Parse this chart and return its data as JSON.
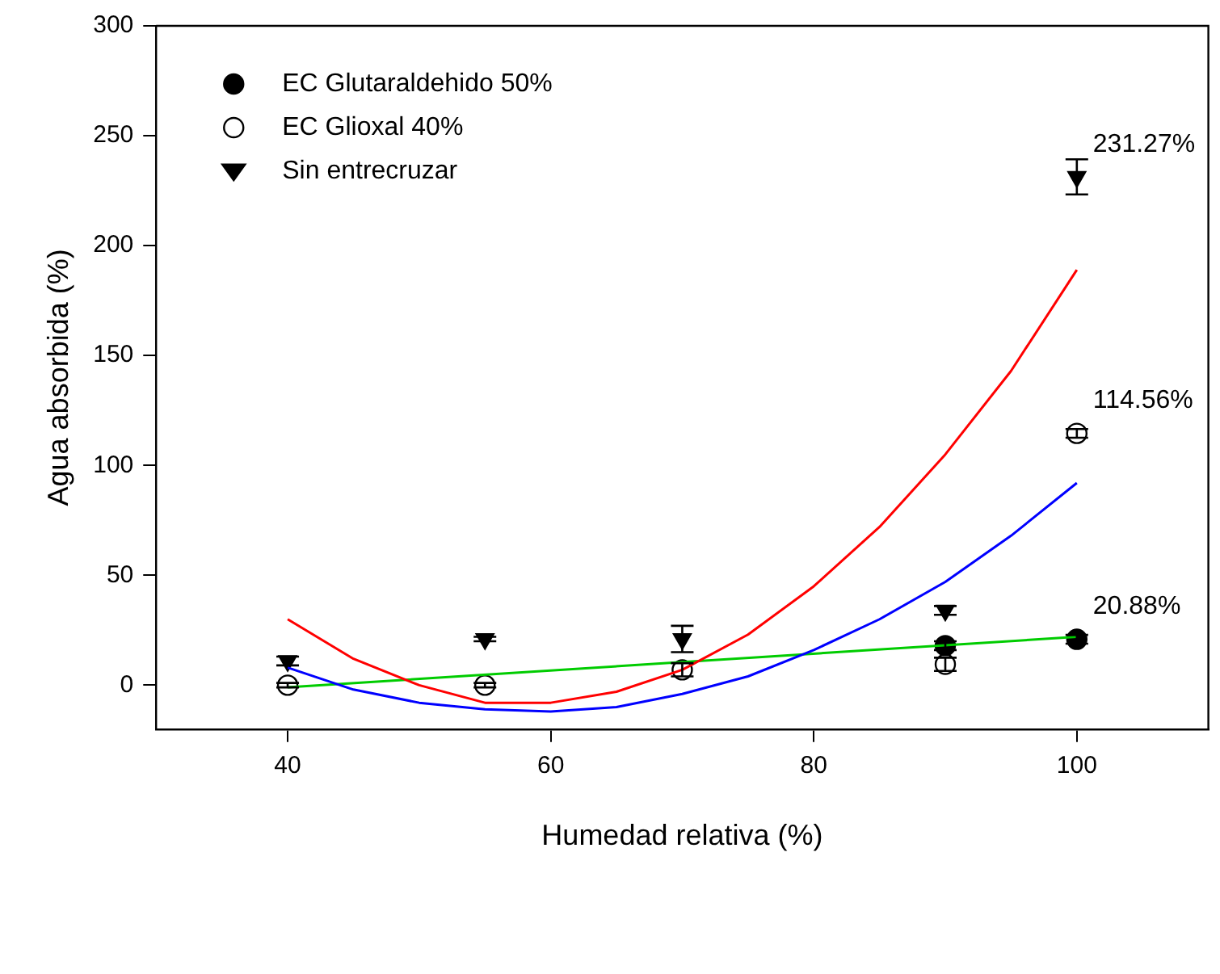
{
  "chart_data": {
    "type": "scatter",
    "xlabel": "Humedad relativa (%)",
    "ylabel": "Agua absorbida (%)",
    "xlim": [
      30,
      110
    ],
    "xticks": [
      40,
      60,
      80,
      100
    ],
    "ylim": [
      -20,
      300
    ],
    "yticks": [
      0,
      50,
      100,
      150,
      200,
      250,
      300
    ],
    "grid": false,
    "legend": "top left",
    "series": [
      {
        "name": "EC Glutaraldehido 50%",
        "marker": "circle",
        "color": "#000000",
        "x": [
          90,
          100
        ],
        "values": [
          18,
          20.88
        ],
        "errors": [
          2,
          2
        ],
        "value_labels": [
          null,
          "20.88%"
        ]
      },
      {
        "name": "EC Glioxal 40%",
        "marker": "circle",
        "color": "#ffffff",
        "x": [
          40,
          55,
          70,
          90,
          100
        ],
        "values": [
          0,
          0,
          7,
          9.5,
          114.56
        ],
        "errors": [
          1,
          1,
          3,
          3,
          2
        ],
        "value_labels": [
          null,
          null,
          null,
          null,
          "114.56%"
        ]
      },
      {
        "name": "Sin entrecruzar",
        "marker": "triangle",
        "color": "#000000",
        "x": [
          40,
          55,
          70,
          90,
          100
        ],
        "values": [
          11,
          21,
          21,
          34,
          231.27
        ],
        "errors": [
          2,
          1,
          6,
          2,
          8
        ],
        "value_labels": [
          null,
          null,
          null,
          null,
          "231.27%"
        ]
      },
      {
        "type": "line",
        "marker": "none",
        "color": "#ff0000",
        "x": [
          40,
          45,
          50,
          55,
          60,
          65,
          70,
          75,
          80,
          85,
          90,
          95,
          100
        ],
        "values": [
          30,
          12,
          0,
          -8,
          -8,
          -3,
          7,
          23,
          45,
          72,
          105,
          143,
          189
        ]
      },
      {
        "type": "line",
        "marker": "none",
        "color": "#0000ff",
        "x": [
          40,
          45,
          50,
          55,
          60,
          65,
          70,
          75,
          80,
          85,
          90,
          95,
          100
        ],
        "values": [
          8,
          -2,
          -8,
          -11,
          -12,
          -10,
          -4,
          4,
          16,
          30,
          47,
          68,
          92
        ]
      },
      {
        "type": "line",
        "marker": "none",
        "color": "#00cc00",
        "x": [
          40,
          100
        ],
        "values": [
          -1,
          22
        ]
      }
    ]
  }
}
